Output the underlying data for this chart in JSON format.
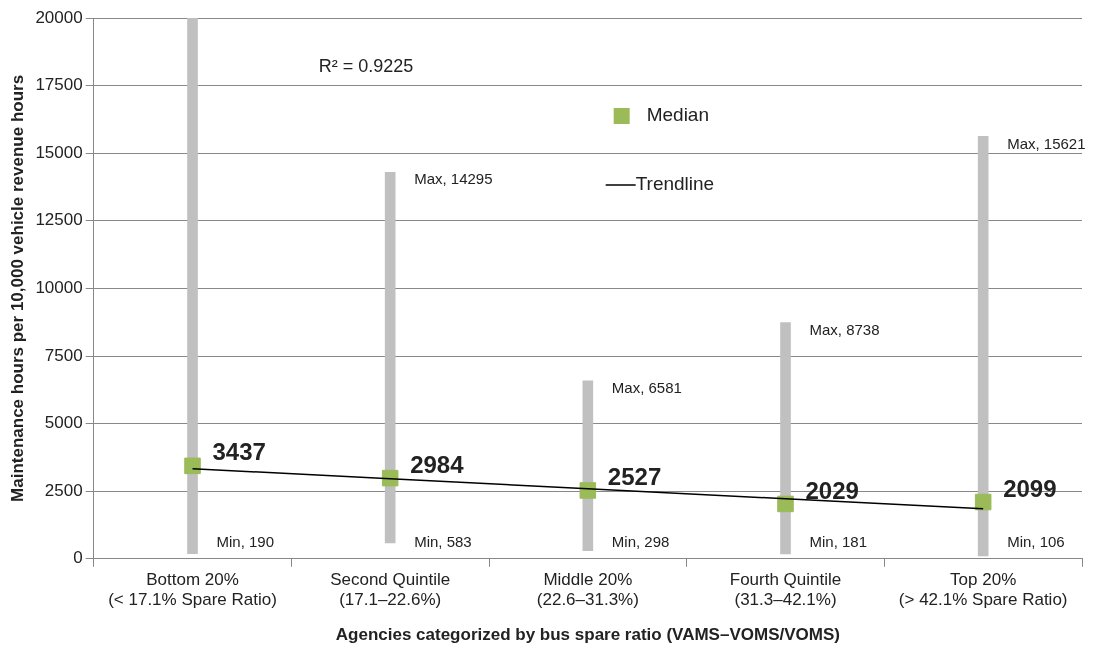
{
  "chart_data": {
    "type": "bar",
    "xlabel": "Agencies categorized by bus spare ratio (VAMS–VOMS/VOMS)",
    "ylabel": "Maintenance hours per 10,000 vehicle revenue hours",
    "categories": [
      "Bottom 20%\n(< 17.1% Spare Ratio)",
      "Second Quintile\n(17.1–22.6%)",
      "Middle 20%\n(22.6–31.3%)",
      "Fourth Quintile\n(31.3–42.1%)",
      "Top 20%\n(> 42.1% Spare Ratio)"
    ],
    "series": [
      {
        "color": "#c0c0c0",
        "base": [
          190,
          583,
          298,
          181,
          106
        ],
        "values": [
          19810,
          13712,
          6283,
          8557,
          15515
        ]
      },
      {
        "type": "scatter",
        "name": "Median",
        "color": "#9bbb59",
        "marker": "square",
        "values": [
          3437,
          2984,
          2527,
          2029,
          2099
        ],
        "value_labels": [
          "3437",
          "2984",
          "2527",
          "2029",
          "2099"
        ]
      },
      {
        "type": "line",
        "name": "Trendline",
        "color": "#000000",
        "marker": "none",
        "values": [
          3330,
          2960,
          2590,
          2220,
          1850
        ]
      }
    ],
    "ylim": [
      0,
      20000
    ],
    "yticks": [
      0,
      2500,
      5000,
      7500,
      10000,
      12500,
      15000,
      17500,
      20000
    ],
    "grid": "y",
    "legend": "top right",
    "annotations": [
      "R² = 0.9225",
      {
        "text": "Max, 14295",
        "x": "Second Quintile\n(17.1–22.6%)",
        "y": 14295
      },
      {
        "text": "Max, 6581",
        "x": "Middle 20%\n(22.6–31.3%)",
        "y": 6581
      },
      {
        "text": "Max, 8738",
        "x": "Fourth Quintile\n(31.3–42.1%)",
        "y": 8738
      },
      {
        "text": "Max, 15621",
        "x": "Top 20%\n(> 42.1% Spare Ratio)",
        "y": 15621
      },
      {
        "text": "Min, 190",
        "x": "Bottom 20%\n(< 17.1% Spare Ratio)",
        "y": 190
      },
      {
        "text": "Min, 583",
        "x": "Second Quintile\n(17.1–22.6%)",
        "y": 583
      },
      {
        "text": "Min, 298",
        "x": "Middle 20%\n(22.6–31.3%)",
        "y": 298
      },
      {
        "text": "Min, 181",
        "x": "Fourth Quintile\n(31.3–42.1%)",
        "y": 181
      },
      {
        "text": "Min, 106",
        "x": "Top 20%\n(> 42.1% Spare Ratio)",
        "y": 106
      }
    ]
  }
}
